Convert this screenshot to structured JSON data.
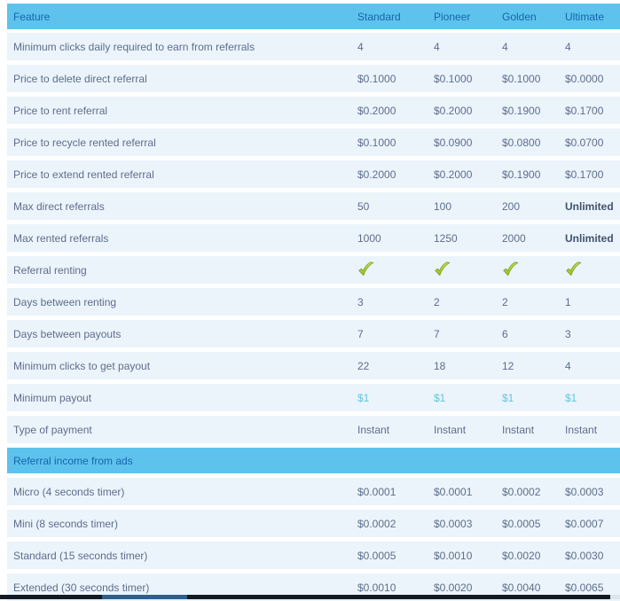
{
  "colors": {
    "header_bg": "#5EC3EC",
    "header_text": "#1565AE",
    "row_bg": "#EBF4FB",
    "text": "#5E6D8C",
    "bold_text": "#42526E",
    "accent": "#62C4DE",
    "check_green": "#9ACB2F"
  },
  "icons": {
    "check": "check-icon"
  },
  "table": {
    "columns": [
      "Feature",
      "Standard",
      "Pioneer",
      "Golden",
      "Ultimate"
    ],
    "rows": [
      {
        "kind": "data",
        "feature": "Minimum clicks daily required to earn from referrals",
        "values": [
          "4",
          "4",
          "4",
          "4"
        ]
      },
      {
        "kind": "data",
        "feature": "Price to delete direct referral",
        "values": [
          "$0.1000",
          "$0.1000",
          "$0.1000",
          "$0.0000"
        ]
      },
      {
        "kind": "data",
        "feature": "Price to rent referral",
        "values": [
          "$0.2000",
          "$0.2000",
          "$0.1900",
          "$0.1700"
        ]
      },
      {
        "kind": "data",
        "feature": "Price to recycle rented referral",
        "values": [
          "$0.1000",
          "$0.0900",
          "$0.0800",
          "$0.0700"
        ]
      },
      {
        "kind": "data",
        "feature": "Price to extend rented referral",
        "values": [
          "$0.2000",
          "$0.2000",
          "$0.1900",
          "$0.1700"
        ]
      },
      {
        "kind": "data",
        "feature": "Max direct referrals",
        "values": [
          "50",
          "100",
          "200",
          "Unlimited"
        ],
        "bold": [
          false,
          false,
          false,
          true
        ]
      },
      {
        "kind": "data",
        "feature": "Max rented referrals",
        "values": [
          "1000",
          "1250",
          "2000",
          "Unlimited"
        ],
        "bold": [
          false,
          false,
          false,
          true
        ]
      },
      {
        "kind": "check",
        "feature": "Referral renting"
      },
      {
        "kind": "data",
        "feature": "Days between renting",
        "values": [
          "3",
          "2",
          "2",
          "1"
        ]
      },
      {
        "kind": "data",
        "feature": "Days between payouts",
        "values": [
          "7",
          "7",
          "6",
          "3"
        ]
      },
      {
        "kind": "data",
        "feature": "Minimum clicks to get payout",
        "values": [
          "22",
          "18",
          "12",
          "4"
        ]
      },
      {
        "kind": "accent",
        "feature": "Minimum payout",
        "values": [
          "$1",
          "$1",
          "$1",
          "$1"
        ]
      },
      {
        "kind": "data",
        "feature": "Type of payment",
        "values": [
          "Instant",
          "Instant",
          "Instant",
          "Instant"
        ]
      },
      {
        "kind": "section",
        "feature": "Referral income from ads"
      },
      {
        "kind": "data",
        "feature": "Micro (4 seconds timer)",
        "values": [
          "$0.0001",
          "$0.0001",
          "$0.0002",
          "$0.0003"
        ]
      },
      {
        "kind": "data",
        "feature": "Mini (8 seconds timer)",
        "values": [
          "$0.0002",
          "$0.0003",
          "$0.0005",
          "$0.0007"
        ]
      },
      {
        "kind": "data",
        "feature": "Standard (15 seconds timer)",
        "values": [
          "$0.0005",
          "$0.0010",
          "$0.0020",
          "$0.0030"
        ]
      },
      {
        "kind": "data",
        "feature": "Extended (30 seconds timer)",
        "values": [
          "$0.0010",
          "$0.0020",
          "$0.0040",
          "$0.0065"
        ]
      }
    ]
  }
}
